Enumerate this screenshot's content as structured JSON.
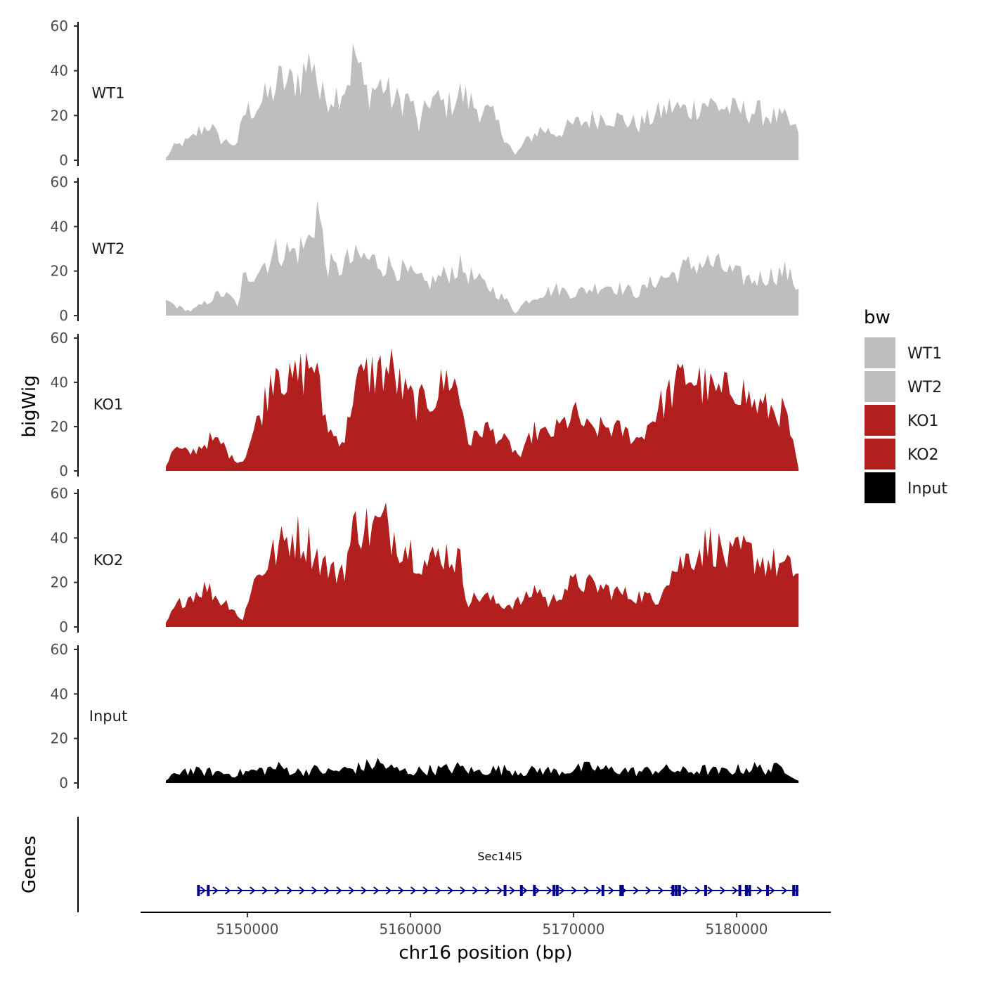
{
  "chart_data": {
    "type": "area",
    "ylabel": "bigWig",
    "xlabel": "chr16 position (bp)",
    "chrom": "chr16",
    "xlim": [
      5143000,
      5186000
    ],
    "data_start": 5145000,
    "data_end": 5183800,
    "ylim": [
      0,
      60
    ],
    "y_ticks": [
      "0",
      "20",
      "40",
      "60"
    ],
    "x_ticks": [
      5150000,
      5160000,
      5170000,
      5180000
    ],
    "x_tick_labels": [
      "5150000",
      "5160000",
      "5170000",
      "5180000"
    ],
    "series": [
      {
        "name": "WT1",
        "color": "#bebebe",
        "anchors": [
          [
            5145000,
            1
          ],
          [
            5145500,
            6
          ],
          [
            5146500,
            9
          ],
          [
            5147000,
            13
          ],
          [
            5147700,
            16
          ],
          [
            5148300,
            9
          ],
          [
            5149000,
            8
          ],
          [
            5149500,
            6
          ],
          [
            5149600,
            20
          ],
          [
            5150500,
            24
          ],
          [
            5151500,
            30
          ],
          [
            5152000,
            36
          ],
          [
            5152500,
            34
          ],
          [
            5153300,
            38
          ],
          [
            5154100,
            47
          ],
          [
            5154400,
            28
          ],
          [
            5155500,
            30
          ],
          [
            5156200,
            36
          ],
          [
            5156600,
            49
          ],
          [
            5157200,
            30
          ],
          [
            5158300,
            34
          ],
          [
            5159000,
            26
          ],
          [
            5160000,
            28
          ],
          [
            5160500,
            14
          ],
          [
            5161200,
            28
          ],
          [
            5162300,
            24
          ],
          [
            5163000,
            30
          ],
          [
            5164000,
            24
          ],
          [
            5165000,
            20
          ],
          [
            5166000,
            8
          ],
          [
            5166400,
            2
          ],
          [
            5167000,
            8
          ],
          [
            5168000,
            14
          ],
          [
            5169000,
            12
          ],
          [
            5170000,
            16
          ],
          [
            5171000,
            18
          ],
          [
            5172000,
            20
          ],
          [
            5173000,
            18
          ],
          [
            5174000,
            16
          ],
          [
            5175000,
            20
          ],
          [
            5176000,
            24
          ],
          [
            5177000,
            22
          ],
          [
            5178000,
            26
          ],
          [
            5179000,
            24
          ],
          [
            5180000,
            22
          ],
          [
            5181000,
            22
          ],
          [
            5182000,
            20
          ],
          [
            5183000,
            18
          ],
          [
            5183800,
            12
          ]
        ]
      },
      {
        "name": "WT2",
        "color": "#bebebe",
        "anchors": [
          [
            5145000,
            7
          ],
          [
            5145700,
            4
          ],
          [
            5146500,
            2
          ],
          [
            5147500,
            6
          ],
          [
            5148300,
            10
          ],
          [
            5149000,
            8
          ],
          [
            5149500,
            4
          ],
          [
            5149700,
            16
          ],
          [
            5150800,
            22
          ],
          [
            5152000,
            30
          ],
          [
            5152700,
            28
          ],
          [
            5153700,
            32
          ],
          [
            5154300,
            50
          ],
          [
            5154800,
            24
          ],
          [
            5155500,
            20
          ],
          [
            5156000,
            24
          ],
          [
            5157000,
            26
          ],
          [
            5158000,
            24
          ],
          [
            5159000,
            22
          ],
          [
            5160000,
            18
          ],
          [
            5161000,
            14
          ],
          [
            5162000,
            18
          ],
          [
            5163000,
            22
          ],
          [
            5164000,
            16
          ],
          [
            5165000,
            12
          ],
          [
            5166000,
            6
          ],
          [
            5166400,
            1
          ],
          [
            5167000,
            6
          ],
          [
            5168000,
            10
          ],
          [
            5169000,
            12
          ],
          [
            5170000,
            10
          ],
          [
            5171000,
            12
          ],
          [
            5172000,
            14
          ],
          [
            5173000,
            12
          ],
          [
            5174000,
            10
          ],
          [
            5175000,
            16
          ],
          [
            5176000,
            18
          ],
          [
            5177000,
            22
          ],
          [
            5178000,
            24
          ],
          [
            5179000,
            22
          ],
          [
            5180000,
            18
          ],
          [
            5181000,
            16
          ],
          [
            5182000,
            18
          ],
          [
            5183000,
            20
          ],
          [
            5183800,
            12
          ]
        ]
      },
      {
        "name": "KO1",
        "color": "#b21f1f",
        "anchors": [
          [
            5145000,
            2
          ],
          [
            5145500,
            10
          ],
          [
            5146500,
            8
          ],
          [
            5147700,
            14
          ],
          [
            5148500,
            12
          ],
          [
            5149000,
            6
          ],
          [
            5149700,
            4
          ],
          [
            5150000,
            10
          ],
          [
            5151000,
            30
          ],
          [
            5151800,
            52
          ],
          [
            5152500,
            38
          ],
          [
            5153300,
            44
          ],
          [
            5154100,
            50
          ],
          [
            5154600,
            28
          ],
          [
            5155200,
            16
          ],
          [
            5156000,
            14
          ],
          [
            5156500,
            38
          ],
          [
            5157500,
            44
          ],
          [
            5158800,
            46
          ],
          [
            5159700,
            34
          ],
          [
            5160500,
            30
          ],
          [
            5161500,
            34
          ],
          [
            5162500,
            44
          ],
          [
            5163200,
            28
          ],
          [
            5163600,
            12
          ],
          [
            5164500,
            20
          ],
          [
            5165300,
            16
          ],
          [
            5166000,
            12
          ],
          [
            5166800,
            6
          ],
          [
            5167500,
            18
          ],
          [
            5168500,
            16
          ],
          [
            5169500,
            22
          ],
          [
            5170000,
            26
          ],
          [
            5171000,
            18
          ],
          [
            5172000,
            20
          ],
          [
            5173000,
            18
          ],
          [
            5174000,
            14
          ],
          [
            5175000,
            26
          ],
          [
            5176000,
            36
          ],
          [
            5177000,
            44
          ],
          [
            5178000,
            38
          ],
          [
            5179000,
            34
          ],
          [
            5180000,
            40
          ],
          [
            5181000,
            30
          ],
          [
            5182000,
            28
          ],
          [
            5183000,
            26
          ],
          [
            5183800,
            1
          ]
        ]
      },
      {
        "name": "KO2",
        "color": "#b21f1f",
        "anchors": [
          [
            5145000,
            2
          ],
          [
            5145700,
            10
          ],
          [
            5146500,
            14
          ],
          [
            5147500,
            18
          ],
          [
            5148300,
            12
          ],
          [
            5149000,
            10
          ],
          [
            5149700,
            2
          ],
          [
            5150200,
            18
          ],
          [
            5151500,
            32
          ],
          [
            5152800,
            42
          ],
          [
            5153700,
            38
          ],
          [
            5154500,
            30
          ],
          [
            5155300,
            24
          ],
          [
            5156000,
            28
          ],
          [
            5156700,
            48
          ],
          [
            5157500,
            44
          ],
          [
            5158500,
            46
          ],
          [
            5159500,
            38
          ],
          [
            5160500,
            32
          ],
          [
            5161000,
            28
          ],
          [
            5162000,
            34
          ],
          [
            5163000,
            30
          ],
          [
            5163500,
            12
          ],
          [
            5164500,
            14
          ],
          [
            5165500,
            10
          ],
          [
            5166000,
            10
          ],
          [
            5167000,
            12
          ],
          [
            5167800,
            18
          ],
          [
            5168500,
            10
          ],
          [
            5169500,
            18
          ],
          [
            5170300,
            20
          ],
          [
            5171500,
            18
          ],
          [
            5172500,
            16
          ],
          [
            5173500,
            14
          ],
          [
            5174500,
            14
          ],
          [
            5175000,
            10
          ],
          [
            5175600,
            22
          ],
          [
            5176500,
            28
          ],
          [
            5177500,
            34
          ],
          [
            5178500,
            38
          ],
          [
            5179500,
            30
          ],
          [
            5180500,
            34
          ],
          [
            5181500,
            30
          ],
          [
            5182500,
            28
          ],
          [
            5183800,
            24
          ]
        ]
      },
      {
        "name": "Input",
        "color": "#000000",
        "anchors": [
          [
            5145000,
            1
          ],
          [
            5146000,
            6
          ],
          [
            5147000,
            5
          ],
          [
            5148000,
            5
          ],
          [
            5149000,
            4
          ],
          [
            5150000,
            5
          ],
          [
            5151000,
            6
          ],
          [
            5152000,
            7
          ],
          [
            5153000,
            5
          ],
          [
            5154000,
            6
          ],
          [
            5155000,
            5
          ],
          [
            5156000,
            6
          ],
          [
            5157000,
            7
          ],
          [
            5158000,
            9
          ],
          [
            5159000,
            6
          ],
          [
            5160000,
            5
          ],
          [
            5161000,
            6
          ],
          [
            5162000,
            6
          ],
          [
            5163000,
            7
          ],
          [
            5164000,
            5
          ],
          [
            5165000,
            6
          ],
          [
            5166000,
            6
          ],
          [
            5167000,
            5
          ],
          [
            5168000,
            6
          ],
          [
            5169000,
            5
          ],
          [
            5170000,
            6
          ],
          [
            5171000,
            7
          ],
          [
            5172000,
            6
          ],
          [
            5173000,
            6
          ],
          [
            5174000,
            5
          ],
          [
            5175000,
            6
          ],
          [
            5176000,
            6
          ],
          [
            5177000,
            5
          ],
          [
            5178000,
            6
          ],
          [
            5179000,
            5
          ],
          [
            5180000,
            6
          ],
          [
            5181000,
            7
          ],
          [
            5182000,
            6
          ],
          [
            5183000,
            7
          ],
          [
            5183800,
            1
          ]
        ]
      }
    ],
    "legend": {
      "title": "bw",
      "position": "right",
      "items": [
        {
          "label": "WT1",
          "color": "#bebebe"
        },
        {
          "label": "WT2",
          "color": "#bebebe"
        },
        {
          "label": "KO1",
          "color": "#b21f1f"
        },
        {
          "label": "KO2",
          "color": "#b21f1f"
        },
        {
          "label": "Input",
          "color": "#000000"
        }
      ]
    },
    "gene_track": {
      "title": "Genes",
      "color": "#00008b",
      "genes": [
        {
          "name": "Sec14l5",
          "start": 5147000,
          "end": 5183800,
          "strand": "+",
          "exons": [
            5147000,
            5147600,
            5165800,
            5166800,
            5167600,
            5168800,
            5169000,
            5171800,
            5172900,
            5173000,
            5176100,
            5176300,
            5176500,
            5178100,
            5180200,
            5180600,
            5180800,
            5181900,
            5183500,
            5183700
          ]
        }
      ]
    }
  }
}
